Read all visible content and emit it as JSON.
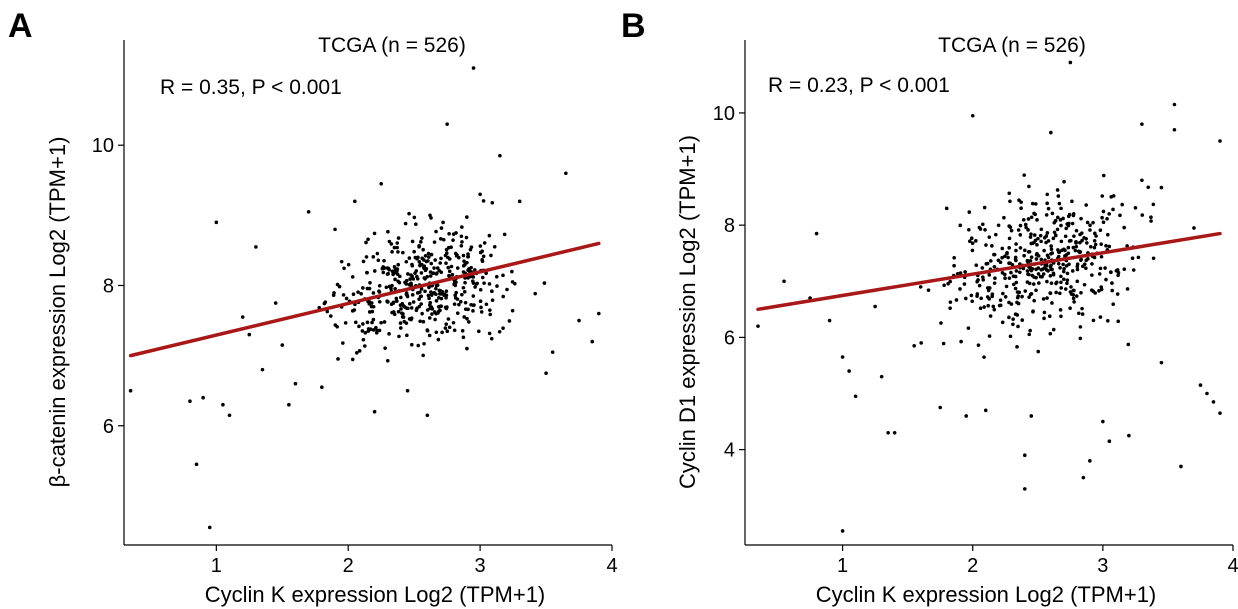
{
  "chart_data": [
    {
      "panel": "A",
      "type": "scatter",
      "title": "TCGA (n = 526)",
      "annotation": "R = 0.35, P < 0.001",
      "xlabel": "Cyclin K expression Log2 (TPM+1)",
      "ylabel": "β-catenin expression Log2 (TPM+1)",
      "xlim": [
        0.3,
        4.0
      ],
      "ylim": [
        4.3,
        11.5
      ],
      "xticks": [
        1,
        2,
        3,
        4
      ],
      "yticks": [
        6,
        8,
        10
      ],
      "grid": false,
      "trend_color": "#A81818",
      "point_color": "#000000",
      "trendline": {
        "x": [
          0.35,
          3.9
        ],
        "y": [
          7.0,
          8.6
        ]
      },
      "points": [
        {
          "x": 0.35,
          "y": 6.5
        },
        {
          "x": 0.8,
          "y": 6.35
        },
        {
          "x": 0.9,
          "y": 6.4
        },
        {
          "x": 0.95,
          "y": 4.55
        },
        {
          "x": 1.0,
          "y": 8.9
        },
        {
          "x": 1.05,
          "y": 6.3
        },
        {
          "x": 1.1,
          "y": 6.15
        },
        {
          "x": 0.85,
          "y": 5.45
        },
        {
          "x": 1.3,
          "y": 8.55
        },
        {
          "x": 1.25,
          "y": 7.3
        },
        {
          "x": 1.5,
          "y": 7.15
        },
        {
          "x": 1.55,
          "y": 6.3
        },
        {
          "x": 1.6,
          "y": 6.6
        },
        {
          "x": 1.7,
          "y": 9.05
        },
        {
          "x": 1.8,
          "y": 6.55
        },
        {
          "x": 1.9,
          "y": 8.8
        },
        {
          "x": 2.05,
          "y": 9.2
        },
        {
          "x": 2.2,
          "y": 6.2
        },
        {
          "x": 2.25,
          "y": 9.45
        },
        {
          "x": 2.6,
          "y": 6.15
        },
        {
          "x": 2.75,
          "y": 10.3
        },
        {
          "x": 2.95,
          "y": 11.1
        },
        {
          "x": 3.15,
          "y": 9.85
        },
        {
          "x": 3.3,
          "y": 9.2
        },
        {
          "x": 3.5,
          "y": 6.75
        },
        {
          "x": 3.55,
          "y": 7.05
        },
        {
          "x": 3.65,
          "y": 9.6
        },
        {
          "x": 3.75,
          "y": 7.5
        },
        {
          "x": 3.85,
          "y": 7.2
        },
        {
          "x": 3.9,
          "y": 7.6
        },
        {
          "x": 3.0,
          "y": 9.3
        },
        {
          "x": 2.9,
          "y": 7.1
        },
        {
          "x": 1.45,
          "y": 7.75
        },
        {
          "x": 1.35,
          "y": 6.8
        },
        {
          "x": 1.2,
          "y": 7.55
        },
        {
          "x": 2.45,
          "y": 6.5
        }
      ]
    },
    {
      "panel": "B",
      "type": "scatter",
      "title": "TCGA (n = 526)",
      "annotation": "R = 0.23, P < 0.001",
      "xlabel": "Cyclin K expression Log2 (TPM+1)",
      "ylabel": "Cyclin D1 expression Log2 (TPM+1)",
      "xlim": [
        0.25,
        4.0
      ],
      "ylim": [
        2.3,
        11.3
      ],
      "xticks": [
        1,
        2,
        3,
        4
      ],
      "yticks": [
        4,
        6,
        8,
        10
      ],
      "grid": false,
      "trend_color": "#A81818",
      "point_color": "#000000",
      "trendline": {
        "x": [
          0.35,
          3.9
        ],
        "y": [
          6.5,
          7.85
        ]
      },
      "points": [
        {
          "x": 0.35,
          "y": 6.2
        },
        {
          "x": 0.55,
          "y": 7.0
        },
        {
          "x": 0.75,
          "y": 6.7
        },
        {
          "x": 0.8,
          "y": 7.85
        },
        {
          "x": 0.9,
          "y": 6.3
        },
        {
          "x": 1.0,
          "y": 2.55
        },
        {
          "x": 1.0,
          "y": 5.65
        },
        {
          "x": 1.05,
          "y": 5.4
        },
        {
          "x": 1.1,
          "y": 4.95
        },
        {
          "x": 1.3,
          "y": 5.3
        },
        {
          "x": 1.35,
          "y": 4.3
        },
        {
          "x": 1.4,
          "y": 4.3
        },
        {
          "x": 1.55,
          "y": 5.85
        },
        {
          "x": 1.75,
          "y": 4.75
        },
        {
          "x": 1.8,
          "y": 8.3
        },
        {
          "x": 1.95,
          "y": 4.6
        },
        {
          "x": 2.0,
          "y": 9.95
        },
        {
          "x": 2.1,
          "y": 4.7
        },
        {
          "x": 2.4,
          "y": 3.9
        },
        {
          "x": 2.4,
          "y": 3.3
        },
        {
          "x": 2.45,
          "y": 4.6
        },
        {
          "x": 2.6,
          "y": 9.65
        },
        {
          "x": 2.75,
          "y": 10.9
        },
        {
          "x": 2.85,
          "y": 3.5
        },
        {
          "x": 2.9,
          "y": 3.8
        },
        {
          "x": 3.0,
          "y": 4.5
        },
        {
          "x": 3.05,
          "y": 4.15
        },
        {
          "x": 3.2,
          "y": 4.25
        },
        {
          "x": 3.3,
          "y": 8.8
        },
        {
          "x": 3.45,
          "y": 5.55
        },
        {
          "x": 3.55,
          "y": 10.15
        },
        {
          "x": 3.55,
          "y": 9.7
        },
        {
          "x": 3.6,
          "y": 3.7
        },
        {
          "x": 3.7,
          "y": 7.95
        },
        {
          "x": 3.75,
          "y": 5.15
        },
        {
          "x": 3.8,
          "y": 5.0
        },
        {
          "x": 3.85,
          "y": 4.85
        },
        {
          "x": 3.9,
          "y": 4.65
        },
        {
          "x": 3.9,
          "y": 9.5
        },
        {
          "x": 3.3,
          "y": 9.8
        },
        {
          "x": 1.6,
          "y": 6.9
        },
        {
          "x": 1.25,
          "y": 6.55
        }
      ]
    }
  ]
}
